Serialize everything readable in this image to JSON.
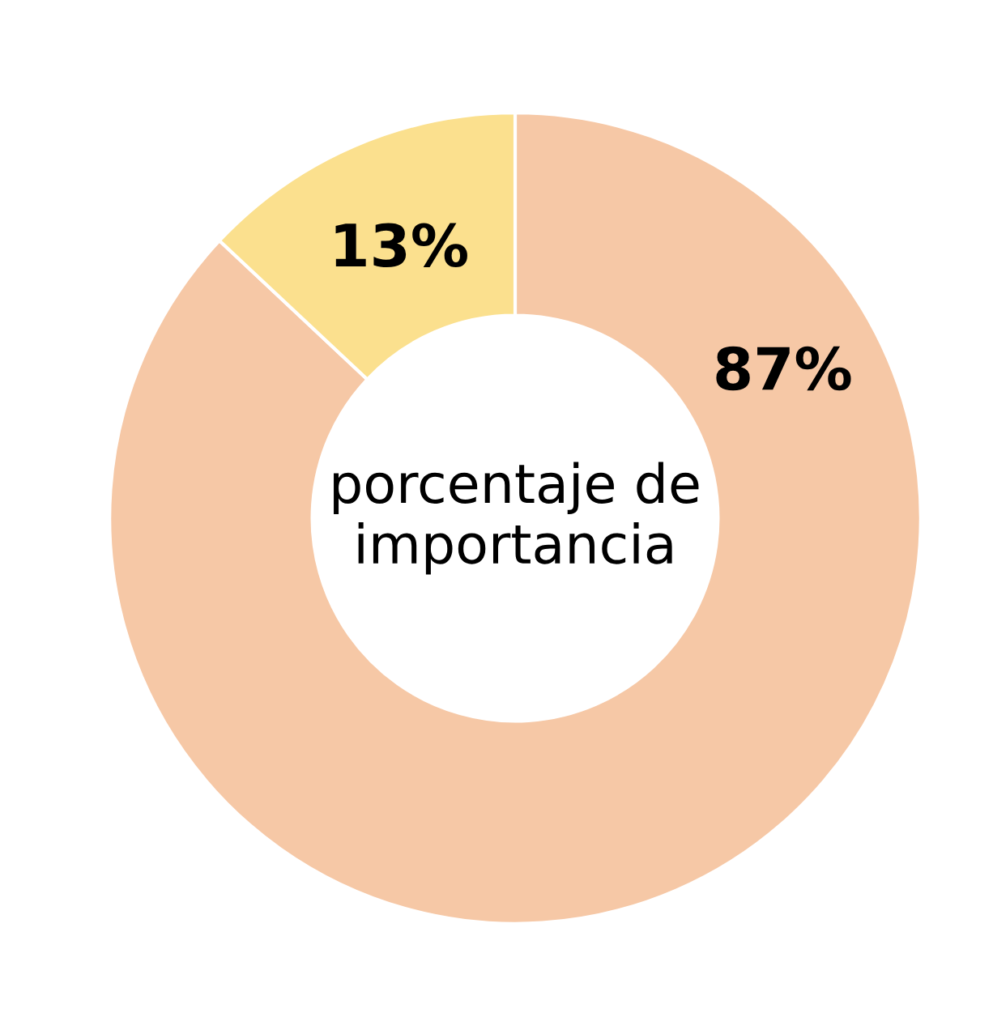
{
  "chart_data": {
    "type": "donut",
    "categories": [
      null,
      null
    ],
    "values": [
      87,
      13
    ],
    "colors": [
      "#f6c8a6",
      "#fbe08e"
    ],
    "value_labels": [
      "87%",
      "13%"
    ],
    "annotations": [
      "porcentaje de\nimportancia"
    ],
    "legend": false
  }
}
